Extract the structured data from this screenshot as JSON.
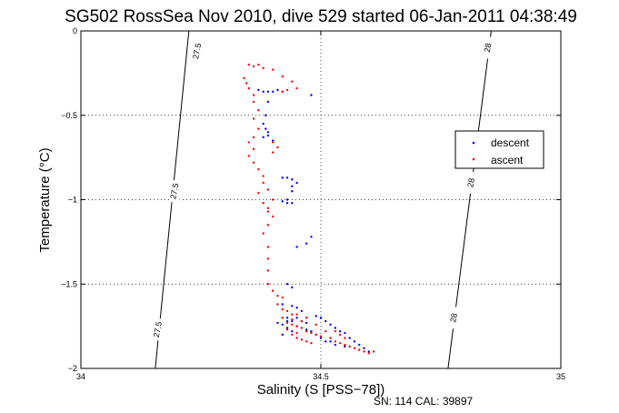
{
  "chart_data": {
    "type": "scatter",
    "title": "SG502 RossSea Nov 2010, dive 529 started 06-Jan-2011 04:38:49",
    "xlabel": "Salinity (S [PSS−78])",
    "ylabel": "Temperature (°C)",
    "xlim": [
      34,
      35
    ],
    "ylim": [
      -2,
      0
    ],
    "xticks": [
      "34",
      "34.5",
      "35"
    ],
    "yticks": [
      "0",
      "−0.5",
      "−1",
      "−1.5",
      "−2"
    ],
    "grid": true,
    "legend_position": "right",
    "caption": "SN: 114  CAL: 39897",
    "colors": {
      "descent": "#0000ff",
      "ascent": "#ff0000"
    },
    "contours": [
      {
        "label": "27.5",
        "points": [
          [
            34.225,
            0
          ],
          [
            34.155,
            -2
          ]
        ]
      },
      {
        "label": "28",
        "points": [
          [
            34.855,
            0
          ],
          [
            34.765,
            -2
          ]
        ]
      }
    ],
    "contour_label_positions": [
      {
        "label": "27.5",
        "x": 34.243,
        "y": -0.12
      },
      {
        "label": "27.5",
        "x": 34.196,
        "y": -0.95
      },
      {
        "label": "27.5",
        "x": 34.161,
        "y": -1.77
      },
      {
        "label": "28",
        "x": 34.849,
        "y": -0.1
      },
      {
        "label": "28",
        "x": 34.814,
        "y": -0.9
      },
      {
        "label": "28",
        "x": 34.778,
        "y": -1.7
      }
    ],
    "series": [
      {
        "name": "descent",
        "points": [
          [
            34.37,
            -0.35
          ],
          [
            34.38,
            -0.36
          ],
          [
            34.39,
            -0.36
          ],
          [
            34.4,
            -0.36
          ],
          [
            34.41,
            -0.35
          ],
          [
            34.42,
            -0.36
          ],
          [
            34.48,
            -0.38
          ],
          [
            34.39,
            -0.42
          ],
          [
            34.385,
            -0.5
          ],
          [
            34.38,
            -0.55
          ],
          [
            34.385,
            -0.58
          ],
          [
            34.39,
            -0.6
          ],
          [
            34.38,
            -0.63
          ],
          [
            34.39,
            -0.62
          ],
          [
            34.4,
            -0.65
          ],
          [
            34.42,
            -0.87
          ],
          [
            34.43,
            -0.87
          ],
          [
            34.44,
            -0.88
          ],
          [
            34.45,
            -0.9
          ],
          [
            34.44,
            -0.92
          ],
          [
            34.44,
            -0.95
          ],
          [
            34.43,
            -1.0
          ],
          [
            34.42,
            -1.01
          ],
          [
            34.43,
            -1.02
          ],
          [
            34.44,
            -1.02
          ],
          [
            34.47,
            -1.26
          ],
          [
            34.48,
            -1.22
          ],
          [
            34.45,
            -1.28
          ],
          [
            34.43,
            -1.5
          ],
          [
            34.44,
            -1.52
          ],
          [
            34.42,
            -1.62
          ],
          [
            34.44,
            -1.63
          ],
          [
            34.45,
            -1.64
          ],
          [
            34.46,
            -1.66
          ],
          [
            34.43,
            -1.7
          ],
          [
            34.44,
            -1.72
          ],
          [
            34.45,
            -1.7
          ],
          [
            34.46,
            -1.72
          ],
          [
            34.47,
            -1.73
          ],
          [
            34.49,
            -1.69
          ],
          [
            34.5,
            -1.7
          ],
          [
            34.51,
            -1.72
          ],
          [
            34.52,
            -1.74
          ],
          [
            34.53,
            -1.76
          ],
          [
            34.54,
            -1.78
          ],
          [
            34.55,
            -1.79
          ],
          [
            34.56,
            -1.82
          ],
          [
            34.57,
            -1.84
          ],
          [
            34.58,
            -1.86
          ],
          [
            34.59,
            -1.88
          ],
          [
            34.6,
            -1.9
          ],
          [
            34.42,
            -1.74
          ],
          [
            34.43,
            -1.76
          ],
          [
            34.44,
            -1.78
          ],
          [
            34.42,
            -1.8
          ],
          [
            34.45,
            -1.75
          ],
          [
            34.47,
            -1.77
          ],
          [
            34.48,
            -1.78
          ],
          [
            34.49,
            -1.8
          ],
          [
            34.5,
            -1.82
          ],
          [
            34.51,
            -1.84
          ],
          [
            34.52,
            -1.84
          ],
          [
            34.53,
            -1.86
          ],
          [
            34.55,
            -1.87
          ],
          [
            34.43,
            -1.72
          ],
          [
            34.41,
            -1.73
          ]
        ]
      },
      {
        "name": "ascent",
        "points": [
          [
            34.35,
            -0.2
          ],
          [
            34.36,
            -0.21
          ],
          [
            34.37,
            -0.2
          ],
          [
            34.38,
            -0.22
          ],
          [
            34.34,
            -0.28
          ],
          [
            34.345,
            -0.31
          ],
          [
            34.35,
            -0.34
          ],
          [
            34.36,
            -0.38
          ],
          [
            34.4,
            -0.23
          ],
          [
            34.42,
            -0.27
          ],
          [
            34.44,
            -0.3
          ],
          [
            34.45,
            -0.34
          ],
          [
            34.42,
            -0.36
          ],
          [
            34.43,
            -0.35
          ],
          [
            34.36,
            -0.42
          ],
          [
            34.37,
            -0.47
          ],
          [
            34.36,
            -0.52
          ],
          [
            34.37,
            -0.58
          ],
          [
            34.36,
            -0.63
          ],
          [
            34.35,
            -0.66
          ],
          [
            34.36,
            -0.7
          ],
          [
            34.35,
            -0.74
          ],
          [
            34.36,
            -0.78
          ],
          [
            34.4,
            -0.66
          ],
          [
            34.41,
            -0.69
          ],
          [
            34.4,
            -0.72
          ],
          [
            34.37,
            -0.82
          ],
          [
            34.38,
            -0.86
          ],
          [
            34.38,
            -0.9
          ],
          [
            34.39,
            -0.94
          ],
          [
            34.37,
            -0.96
          ],
          [
            34.38,
            -1.02
          ],
          [
            34.39,
            -1.05
          ],
          [
            34.4,
            -1.0
          ],
          [
            34.39,
            -1.07
          ],
          [
            34.4,
            -1.1
          ],
          [
            34.39,
            -1.15
          ],
          [
            34.38,
            -1.2
          ],
          [
            34.39,
            -1.28
          ],
          [
            34.39,
            -1.35
          ],
          [
            34.39,
            -1.42
          ],
          [
            34.39,
            -1.5
          ],
          [
            34.4,
            -1.54
          ],
          [
            34.41,
            -1.57
          ],
          [
            34.42,
            -1.58
          ],
          [
            34.41,
            -1.62
          ],
          [
            34.42,
            -1.65
          ],
          [
            34.43,
            -1.66
          ],
          [
            34.44,
            -1.68
          ],
          [
            34.45,
            -1.68
          ],
          [
            34.42,
            -1.7
          ],
          [
            34.43,
            -1.73
          ],
          [
            34.44,
            -1.74
          ],
          [
            34.45,
            -1.75
          ],
          [
            34.46,
            -1.76
          ],
          [
            34.47,
            -1.78
          ],
          [
            34.48,
            -1.79
          ],
          [
            34.49,
            -1.8
          ],
          [
            34.5,
            -1.81
          ],
          [
            34.44,
            -1.8
          ],
          [
            34.45,
            -1.82
          ],
          [
            34.46,
            -1.83
          ],
          [
            34.47,
            -1.84
          ],
          [
            34.48,
            -1.85
          ],
          [
            34.52,
            -1.82
          ],
          [
            34.53,
            -1.84
          ],
          [
            34.54,
            -1.85
          ],
          [
            34.55,
            -1.86
          ],
          [
            34.56,
            -1.87
          ],
          [
            34.57,
            -1.88
          ],
          [
            34.58,
            -1.89
          ],
          [
            34.59,
            -1.9
          ],
          [
            34.6,
            -1.91
          ],
          [
            34.61,
            -1.9
          ],
          [
            34.54,
            -1.8
          ],
          [
            34.55,
            -1.82
          ],
          [
            34.51,
            -1.78
          ],
          [
            34.53,
            -1.78
          ],
          [
            34.44,
            -1.71
          ],
          [
            34.46,
            -1.72
          ],
          [
            34.47,
            -1.7
          ],
          [
            34.49,
            -1.74
          ],
          [
            34.43,
            -1.77
          ],
          [
            34.45,
            -1.79
          ]
        ]
      }
    ]
  }
}
